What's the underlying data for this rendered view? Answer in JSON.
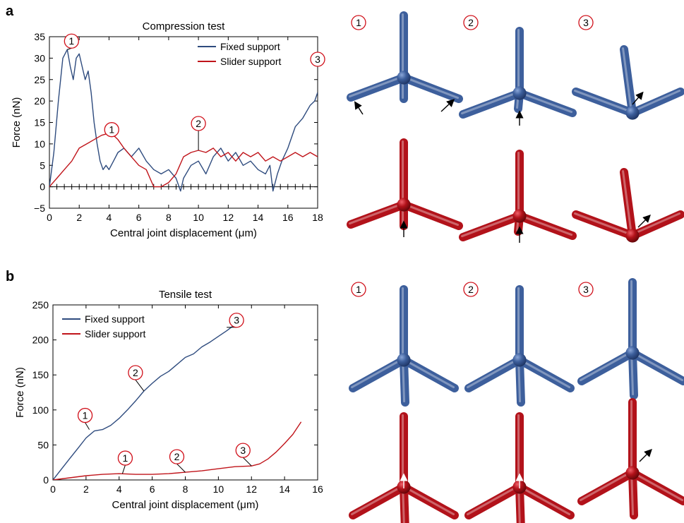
{
  "panels": {
    "a": {
      "letter": "a"
    },
    "b": {
      "letter": "b"
    }
  },
  "colors": {
    "fixed": "#2e4b7e",
    "slider": "#c0141a",
    "callout": "#d0101a",
    "fixed_model": "#3d5f9c",
    "slider_model": "#b2121a"
  },
  "model_labels": {
    "a": [
      "1",
      "2",
      "3"
    ],
    "b": [
      "1",
      "2",
      "3"
    ]
  },
  "chart_data": [
    {
      "type": "line",
      "title": "Compression test",
      "xlabel": "Central joint displacement (μm)",
      "ylabel": "Force (nN)",
      "xlim": [
        0,
        18
      ],
      "ylim": [
        -5,
        35
      ],
      "xticks": [
        0,
        2,
        4,
        6,
        8,
        10,
        12,
        14,
        16,
        18
      ],
      "yticks": [
        -5,
        0,
        5,
        10,
        15,
        20,
        25,
        30,
        35
      ],
      "grid": false,
      "legend_position": "top-right",
      "series": [
        {
          "name": "Fixed support",
          "color": "#2e4b7e",
          "x": [
            0,
            0.3,
            0.6,
            0.9,
            1.2,
            1.4,
            1.6,
            1.8,
            2.0,
            2.2,
            2.4,
            2.6,
            2.8,
            3.0,
            3.2,
            3.4,
            3.6,
            3.8,
            4.0,
            4.3,
            4.6,
            5.0,
            5.5,
            6.0,
            6.5,
            7.0,
            7.5,
            8.0,
            8.5,
            8.8,
            9.0,
            9.5,
            10.0,
            10.5,
            11.0,
            11.5,
            12.0,
            12.5,
            13.0,
            13.5,
            14.0,
            14.5,
            14.8,
            15.0,
            15.3,
            15.6,
            16.0,
            16.5,
            17.0,
            17.5,
            17.8,
            18.0
          ],
          "y": [
            0,
            8,
            20,
            30,
            32,
            28,
            25,
            30,
            31,
            28,
            25,
            27,
            22,
            15,
            10,
            6,
            4,
            5,
            4,
            6,
            8,
            9,
            7,
            9,
            6,
            4,
            3,
            4,
            2,
            -1,
            2,
            5,
            6,
            3,
            7,
            9,
            6,
            8,
            5,
            6,
            4,
            3,
            5,
            -1,
            3,
            6,
            9,
            14,
            16,
            19,
            20,
            22
          ]
        },
        {
          "name": "Slider support",
          "color": "#c0141a",
          "x": [
            0,
            0.5,
            1.0,
            1.5,
            2.0,
            2.5,
            3.0,
            3.5,
            4.0,
            4.3,
            4.6,
            5.0,
            5.5,
            6.0,
            6.5,
            7.0,
            7.5,
            8.0,
            8.5,
            9.0,
            9.5,
            10.0,
            10.5,
            11.0,
            11.5,
            12.0,
            12.5,
            13.0,
            13.5,
            14.0,
            14.5,
            15.0,
            15.5,
            16.0,
            16.5,
            17.0,
            17.5,
            18.0
          ],
          "y": [
            0,
            2,
            4,
            6,
            9,
            10,
            11,
            12,
            12.5,
            12,
            11,
            9,
            7,
            5,
            4,
            0,
            0,
            1,
            3,
            7,
            8,
            8.5,
            8,
            9,
            7,
            8,
            6,
            8,
            7,
            8,
            6,
            7,
            6,
            7,
            8,
            7,
            8,
            7
          ]
        }
      ],
      "annotations": [
        {
          "label": "1",
          "series": "Fixed support",
          "x": 1.2,
          "y": 32
        },
        {
          "label": "1",
          "series": "Slider support",
          "x": 3.8,
          "y": 12.5
        },
        {
          "label": "2",
          "series": "Slider support",
          "x": 10.0,
          "y": 8.5
        },
        {
          "label": "3",
          "series": "Fixed support",
          "x": 18.0,
          "y": 22
        }
      ]
    },
    {
      "type": "line",
      "title": "Tensile test",
      "xlabel": "Central joint displacement (μm)",
      "ylabel": "Force (nN)",
      "xlim": [
        0,
        16
      ],
      "ylim": [
        0,
        250
      ],
      "xticks": [
        0,
        2,
        4,
        6,
        8,
        10,
        12,
        14,
        16
      ],
      "yticks": [
        0,
        50,
        100,
        150,
        200,
        250
      ],
      "grid": false,
      "legend_position": "top-left",
      "series": [
        {
          "name": "Fixed support",
          "color": "#2e4b7e",
          "x": [
            0,
            0.5,
            1.0,
            1.5,
            2.0,
            2.5,
            3.0,
            3.5,
            4.0,
            4.5,
            5.0,
            5.5,
            6.0,
            6.5,
            7.0,
            7.5,
            8.0,
            8.5,
            9.0,
            9.5,
            10.0,
            10.5,
            11.0
          ],
          "y": [
            0,
            15,
            30,
            45,
            60,
            70,
            72,
            78,
            88,
            100,
            113,
            127,
            138,
            148,
            155,
            165,
            175,
            180,
            190,
            197,
            205,
            213,
            222
          ]
        },
        {
          "name": "Slider support",
          "color": "#c0141a",
          "x": [
            0,
            1.0,
            2.0,
            3.0,
            4.0,
            5.0,
            6.0,
            7.0,
            8.0,
            9.0,
            10.0,
            11.0,
            12.0,
            12.5,
            13.0,
            13.5,
            14.0,
            14.5,
            15.0
          ],
          "y": [
            0,
            3,
            6,
            8,
            9,
            8,
            8,
            9,
            11,
            13,
            16,
            19,
            20,
            23,
            30,
            40,
            52,
            65,
            83
          ]
        }
      ],
      "annotations": [
        {
          "label": "1",
          "series": "Fixed support",
          "x": 2.2,
          "y": 72
        },
        {
          "label": "2",
          "series": "Fixed support",
          "x": 5.5,
          "y": 127
        },
        {
          "label": "3",
          "series": "Fixed support",
          "x": 10.5,
          "y": 218
        },
        {
          "label": "1",
          "series": "Slider support",
          "x": 4.2,
          "y": 9
        },
        {
          "label": "2",
          "series": "Slider support",
          "x": 8.0,
          "y": 11
        },
        {
          "label": "3",
          "series": "Slider support",
          "x": 12.0,
          "y": 20
        }
      ]
    }
  ]
}
